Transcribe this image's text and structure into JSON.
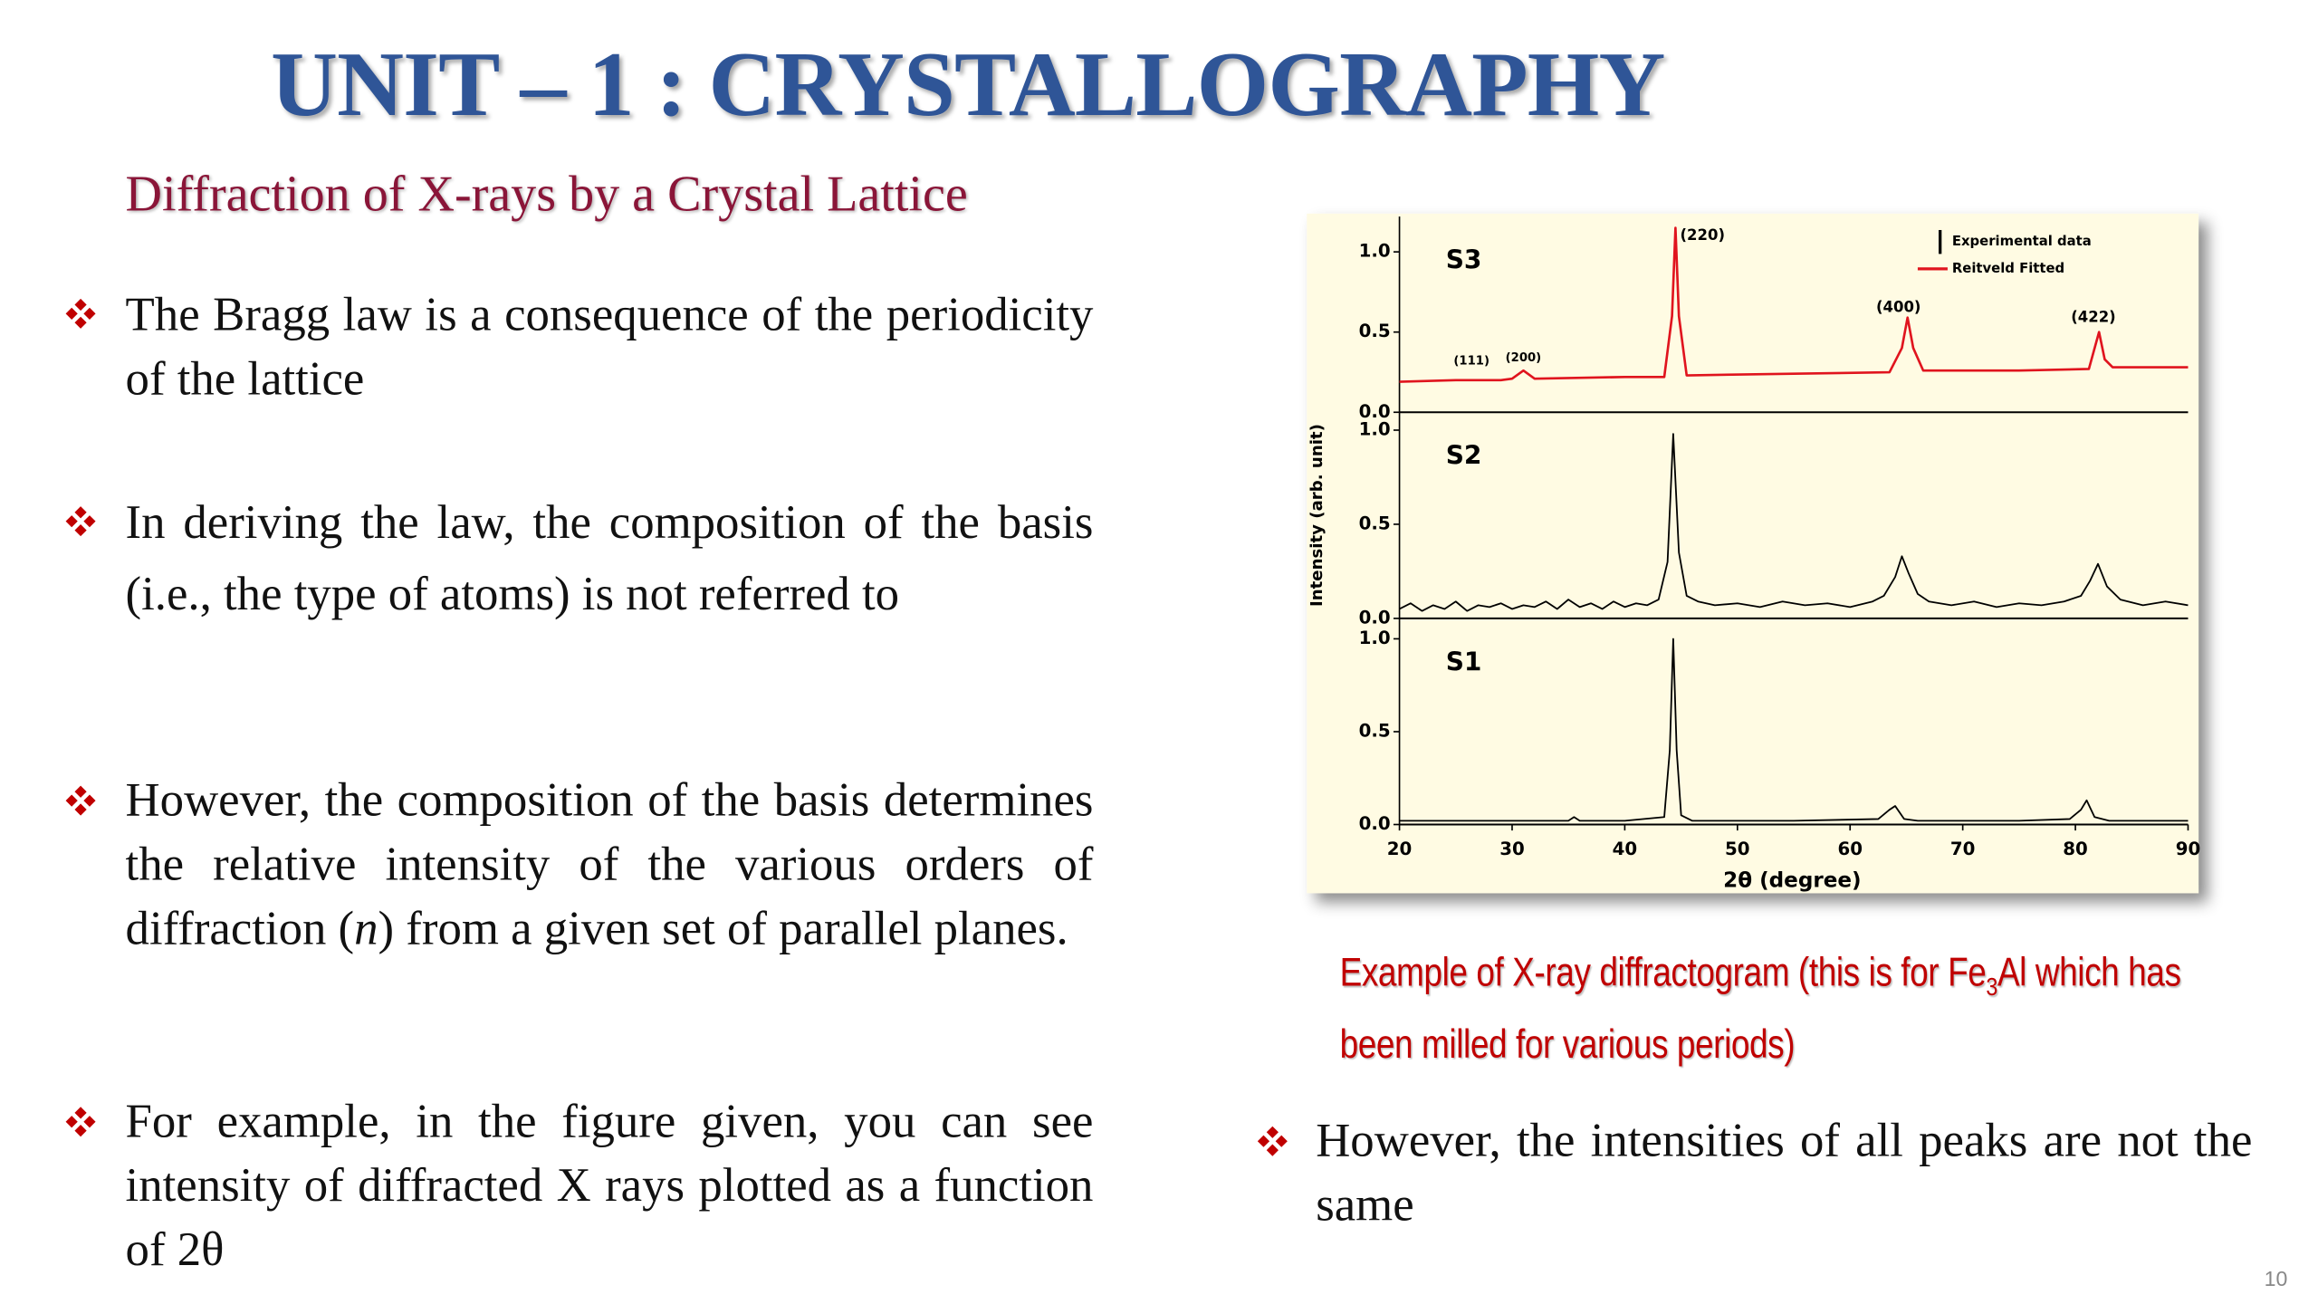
{
  "header": {
    "title": "UNIT – 1 : CRYSTALLOGRAPHY",
    "subtitle": "Diffraction of X-rays by a Crystal Lattice"
  },
  "bullets": [
    {
      "text": "The Bragg law is a consequence of the periodicity of the lattice"
    },
    {
      "text": "In deriving the law, the composition of the basis (i.e., the type of atoms) is not referred to"
    },
    {
      "parts": [
        "However, the composition of the basis determines the relative intensity of the various orders of diffraction (",
        "n",
        ") from a given set of parallel planes."
      ]
    },
    {
      "text": "For example, in the figure given, you can see intensity of diffracted X rays plotted as a function of 2θ"
    }
  ],
  "figure": {
    "caption_parts": [
      "Example of X-ray diffractogram (this is for Fe",
      "3",
      "Al which has been milled for various periods)"
    ]
  },
  "right_bullet": "However, the intensities of all peaks are not the same",
  "page_number": "10",
  "chart_data": {
    "type": "line",
    "xlabel": "2θ (degree)",
    "ylabel": "Intensity (arb. unit)",
    "xlim": [
      20,
      90
    ],
    "xticks": [
      20,
      30,
      40,
      50,
      60,
      70,
      80,
      90
    ],
    "legend": [
      {
        "name": "Experimental data",
        "color": "#000000"
      },
      {
        "name": "Reitveld Fitted",
        "color": "#e0141e"
      }
    ],
    "panels": [
      {
        "label": "S3",
        "color": "#e0141e",
        "ylim": [
          0,
          1.22
        ],
        "yticks": [
          {
            "value": 0,
            "label": "0.0"
          },
          {
            "value": 0.5,
            "label": "0.5"
          },
          {
            "value": 1,
            "label": "1.0"
          }
        ],
        "x": [
          20,
          25,
          29,
          30,
          31,
          32,
          40,
          43.5,
          44.2,
          44.5,
          44.8,
          45.5,
          55,
          63.5,
          64.6,
          65.1,
          65.6,
          66.5,
          75,
          81.2,
          82.1,
          82.6,
          83.3,
          90
        ],
        "y": [
          0.19,
          0.2,
          0.2,
          0.21,
          0.26,
          0.21,
          0.22,
          0.22,
          0.6,
          1.15,
          0.6,
          0.23,
          0.24,
          0.25,
          0.4,
          0.59,
          0.4,
          0.26,
          0.26,
          0.27,
          0.5,
          0.33,
          0.28,
          0.28
        ],
        "annotations": [
          {
            "text": "(111)",
            "x": 26.4,
            "y": 0.32
          },
          {
            "text": "(200)",
            "x": 31,
            "y": 0.34
          },
          {
            "text": "(220)",
            "x": 46.9,
            "y": 1.1
          },
          {
            "text": "(400)",
            "x": 64.3,
            "y": 0.65
          },
          {
            "text": "(422)",
            "x": 81.6,
            "y": 0.59
          }
        ]
      },
      {
        "label": "S2",
        "color": "#000000",
        "ylim": [
          0,
          1.095
        ],
        "yticks": [
          {
            "value": 0,
            "label": "0.0"
          },
          {
            "value": 0.5,
            "label": "0.5"
          },
          {
            "value": 1,
            "label": "1.0"
          }
        ],
        "x": [
          20,
          21,
          22,
          23,
          24,
          25,
          26,
          27,
          28,
          29,
          30,
          31,
          32,
          33,
          34,
          35,
          36,
          37,
          38,
          39,
          40,
          41,
          42,
          43,
          43.8,
          44.3,
          44.8,
          45.5,
          46.5,
          48,
          50,
          52,
          54,
          56,
          58,
          60,
          62,
          63,
          64,
          64.6,
          65.2,
          66,
          67,
          69,
          71,
          73,
          75,
          77,
          79,
          80.5,
          81.3,
          82,
          82.8,
          84,
          86,
          88,
          90
        ],
        "y": [
          0.05,
          0.08,
          0.04,
          0.07,
          0.05,
          0.09,
          0.04,
          0.07,
          0.06,
          0.08,
          0.05,
          0.07,
          0.06,
          0.09,
          0.05,
          0.1,
          0.06,
          0.08,
          0.05,
          0.09,
          0.06,
          0.08,
          0.07,
          0.1,
          0.3,
          0.98,
          0.35,
          0.12,
          0.09,
          0.07,
          0.08,
          0.06,
          0.09,
          0.07,
          0.08,
          0.06,
          0.09,
          0.12,
          0.22,
          0.33,
          0.24,
          0.13,
          0.09,
          0.07,
          0.09,
          0.06,
          0.08,
          0.07,
          0.09,
          0.12,
          0.2,
          0.29,
          0.17,
          0.1,
          0.07,
          0.09,
          0.07
        ]
      },
      {
        "label": "S1",
        "color": "#000000",
        "ylim": [
          0,
          1.11
        ],
        "yticks": [
          {
            "value": 0,
            "label": "0.0"
          },
          {
            "value": 0.5,
            "label": "0.5"
          },
          {
            "value": 1,
            "label": "1.0"
          }
        ],
        "x": [
          20,
          30,
          35,
          35.5,
          36,
          40,
          43.5,
          44,
          44.3,
          44.6,
          45,
          46,
          55,
          62.5,
          63.5,
          64,
          64.8,
          66,
          75,
          79.5,
          80.5,
          81,
          81.7,
          83,
          90
        ],
        "y": [
          0.02,
          0.02,
          0.02,
          0.04,
          0.02,
          0.02,
          0.04,
          0.4,
          1.0,
          0.4,
          0.05,
          0.02,
          0.02,
          0.03,
          0.08,
          0.1,
          0.03,
          0.02,
          0.02,
          0.03,
          0.08,
          0.13,
          0.04,
          0.02,
          0.02
        ]
      }
    ]
  }
}
